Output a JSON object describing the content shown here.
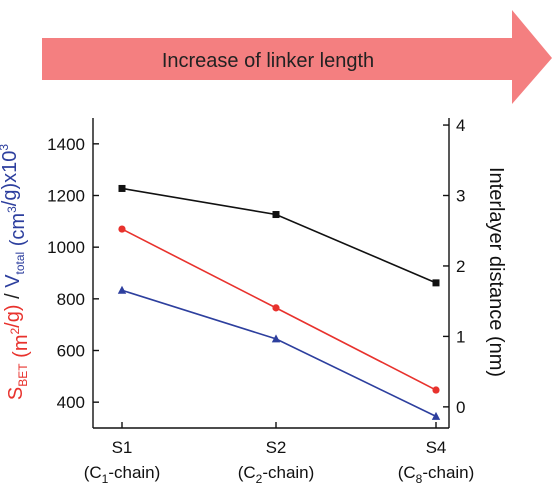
{
  "banner": {
    "text": "Increase of linker length",
    "color": "#f47f80"
  },
  "chart_data": {
    "type": "line",
    "categories": [
      "S1",
      "S2",
      "S4"
    ],
    "category_sublabels": [
      {
        "pre": "(C",
        "sub": "1",
        "post": "-chain)"
      },
      {
        "pre": "(C",
        "sub": "2",
        "post": "-chain)"
      },
      {
        "pre": "(C",
        "sub": "8",
        "post": "-chain)"
      }
    ],
    "y_left": {
      "ylim": [
        300,
        1500
      ],
      "ticks": [
        400,
        600,
        800,
        1000,
        1200,
        1400
      ],
      "label_parts": [
        {
          "text": "S",
          "color": "#e8322d",
          "shift": "normal"
        },
        {
          "text": "BET",
          "color": "#e8322d",
          "shift": "sub"
        },
        {
          "text": " (m",
          "color": "#e8322d",
          "shift": "normal"
        },
        {
          "text": "2",
          "color": "#e8322d",
          "shift": "super"
        },
        {
          "text": "/g)",
          "color": "#e8322d",
          "shift": "normal"
        },
        {
          "text": " / ",
          "color": "#222222",
          "shift": "normal"
        },
        {
          "text": "V",
          "color": "#2d3f9e",
          "shift": "normal"
        },
        {
          "text": "total",
          "color": "#2d3f9e",
          "shift": "sub"
        },
        {
          "text": " (cm",
          "color": "#2d3f9e",
          "shift": "normal"
        },
        {
          "text": "3",
          "color": "#2d3f9e",
          "shift": "super"
        },
        {
          "text": "/g)x10",
          "color": "#2d3f9e",
          "shift": "normal"
        },
        {
          "text": "3",
          "color": "#2d3f9e",
          "shift": "super"
        }
      ]
    },
    "y_right": {
      "ylim": [
        -0.3,
        4.1
      ],
      "ticks": [
        0,
        1,
        2,
        3,
        4
      ],
      "label": "Interlayer distance (nm)"
    },
    "series": [
      {
        "axis": "left",
        "color": "#e8322d",
        "marker": "circle",
        "values": [
          1070,
          765,
          447
        ]
      },
      {
        "axis": "left",
        "color": "#2d3f9e",
        "marker": "triangle",
        "values": [
          833,
          645,
          345
        ]
      },
      {
        "axis": "right",
        "color": "#111111",
        "marker": "square",
        "values": [
          3.1,
          2.73,
          1.76
        ]
      }
    ]
  }
}
